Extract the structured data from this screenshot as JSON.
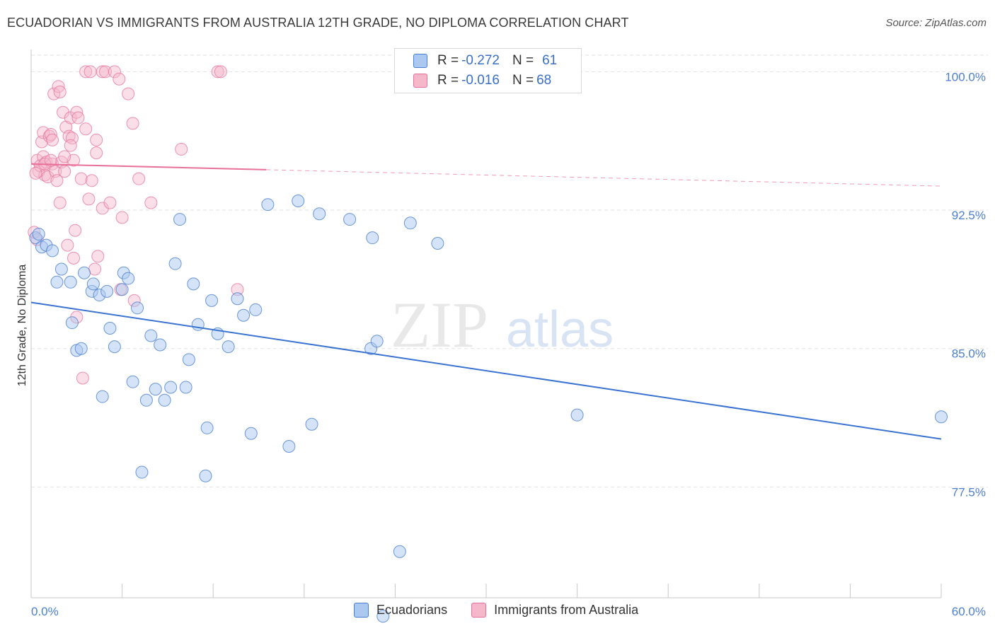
{
  "header": {
    "title": "ECUADORIAN VS IMMIGRANTS FROM AUSTRALIA 12TH GRADE, NO DIPLOMA CORRELATION CHART",
    "source": "Source: ZipAtlas.com"
  },
  "legend": {
    "rows": [
      {
        "r_label": "R = ",
        "r_value": "-0.272",
        "n_label": "N = ",
        "n_value": "61"
      },
      {
        "r_label": "R = ",
        "r_value": "-0.016",
        "n_label": "N = ",
        "n_value": "68"
      }
    ]
  },
  "bottom_legend": {
    "series1": "Ecuadorians",
    "series2": "Immigrants from Australia"
  },
  "watermark": {
    "part1": "ZIP",
    "part2": "atlas"
  },
  "colors": {
    "blue": "#4a7fd0",
    "blue_fill": "#aac8f0",
    "pink": "#e8709a",
    "pink_fill": "#f5b8cb",
    "axis_text": "#4a7fd0"
  },
  "chart_data": {
    "type": "scatter",
    "ylabel": "12th Grade, No Diploma",
    "xlim": [
      0,
      60
    ],
    "ylim": [
      71.5,
      101.2
    ],
    "x_tick_labels": [
      "0.0%",
      "60.0%"
    ],
    "y_ticks": [
      77.5,
      85.0,
      92.5,
      100.0
    ],
    "y_tick_labels": [
      "77.5%",
      "85.0%",
      "92.5%",
      "100.0%"
    ],
    "grid": true,
    "series": [
      {
        "name": "Ecuadorians",
        "color": "#4a7fd0",
        "trend": {
          "x0": 0,
          "y0": 87.5,
          "x1": 60,
          "y1": 80.1
        },
        "points": [
          [
            0.3,
            91.0
          ],
          [
            0.5,
            91.2
          ],
          [
            0.7,
            90.5
          ],
          [
            1.0,
            90.6
          ],
          [
            1.4,
            90.3
          ],
          [
            1.7,
            88.6
          ],
          [
            2.0,
            89.3
          ],
          [
            2.6,
            88.6
          ],
          [
            2.7,
            86.4
          ],
          [
            3.0,
            84.9
          ],
          [
            3.3,
            85.0
          ],
          [
            3.5,
            89.1
          ],
          [
            4.0,
            88.1
          ],
          [
            4.1,
            88.5
          ],
          [
            4.5,
            87.9
          ],
          [
            4.7,
            82.4
          ],
          [
            5.0,
            88.1
          ],
          [
            5.2,
            86.1
          ],
          [
            5.5,
            85.1
          ],
          [
            6.0,
            88.2
          ],
          [
            6.1,
            89.1
          ],
          [
            6.4,
            88.8
          ],
          [
            6.7,
            83.2
          ],
          [
            7.0,
            87.2
          ],
          [
            7.3,
            78.3
          ],
          [
            7.6,
            82.2
          ],
          [
            7.9,
            85.7
          ],
          [
            8.2,
            82.8
          ],
          [
            8.5,
            85.2
          ],
          [
            8.8,
            82.2
          ],
          [
            9.2,
            82.9
          ],
          [
            9.5,
            89.6
          ],
          [
            9.8,
            92.0
          ],
          [
            10.2,
            82.9
          ],
          [
            10.4,
            84.4
          ],
          [
            10.7,
            88.5
          ],
          [
            11.0,
            86.3
          ],
          [
            11.5,
            78.1
          ],
          [
            11.6,
            80.7
          ],
          [
            11.9,
            87.6
          ],
          [
            12.3,
            85.8
          ],
          [
            13.0,
            85.1
          ],
          [
            13.6,
            87.7
          ],
          [
            14.0,
            86.8
          ],
          [
            14.5,
            80.4
          ],
          [
            14.8,
            87.1
          ],
          [
            15.6,
            92.8
          ],
          [
            17.0,
            79.7
          ],
          [
            17.6,
            93.0
          ],
          [
            18.5,
            80.9
          ],
          [
            19.0,
            92.3
          ],
          [
            21.0,
            92.0
          ],
          [
            22.4,
            85.0
          ],
          [
            22.5,
            91.0
          ],
          [
            22.8,
            85.4
          ],
          [
            24.3,
            74.0
          ],
          [
            23.2,
            70.5
          ],
          [
            25.0,
            91.8
          ],
          [
            26.8,
            90.7
          ],
          [
            36.0,
            81.4
          ],
          [
            60.0,
            81.3
          ]
        ]
      },
      {
        "name": "Immigrants from Australia",
        "color": "#e8709a",
        "trend": {
          "x0": 0,
          "y0": 95.0,
          "x1": 60,
          "y1": 93.8,
          "solid_until": 15.5
        },
        "points": [
          [
            0.2,
            91.3
          ],
          [
            0.4,
            90.9
          ],
          [
            0.4,
            95.2
          ],
          [
            0.5,
            94.6
          ],
          [
            0.6,
            94.9
          ],
          [
            0.7,
            96.2
          ],
          [
            0.8,
            96.7
          ],
          [
            0.8,
            95.4
          ],
          [
            0.9,
            94.4
          ],
          [
            1.0,
            95.1
          ],
          [
            1.1,
            94.3
          ],
          [
            1.2,
            96.5
          ],
          [
            1.3,
            96.6
          ],
          [
            1.4,
            96.3
          ],
          [
            1.4,
            95.0
          ],
          [
            1.5,
            98.8
          ],
          [
            1.6,
            94.6
          ],
          [
            1.8,
            99.2
          ],
          [
            1.9,
            98.9
          ],
          [
            1.9,
            92.9
          ],
          [
            2.0,
            95.1
          ],
          [
            2.1,
            97.8
          ],
          [
            2.2,
            94.6
          ],
          [
            2.3,
            97.0
          ],
          [
            2.4,
            90.6
          ],
          [
            2.5,
            96.5
          ],
          [
            2.6,
            97.5
          ],
          [
            2.7,
            96.4
          ],
          [
            2.8,
            89.9
          ],
          [
            2.8,
            95.2
          ],
          [
            2.9,
            91.4
          ],
          [
            3.0,
            97.8
          ],
          [
            3.1,
            97.5
          ],
          [
            3.3,
            94.2
          ],
          [
            3.6,
            96.9
          ],
          [
            3.6,
            100.0
          ],
          [
            3.8,
            93.1
          ],
          [
            3.9,
            100.0
          ],
          [
            4.2,
            89.3
          ],
          [
            4.3,
            96.3
          ],
          [
            4.3,
            95.6
          ],
          [
            4.4,
            90.0
          ],
          [
            4.7,
            92.6
          ],
          [
            4.7,
            100.0
          ],
          [
            4.9,
            100.0
          ],
          [
            5.2,
            92.9
          ],
          [
            5.5,
            100.0
          ],
          [
            5.8,
            99.6
          ],
          [
            6.0,
            92.1
          ],
          [
            6.4,
            98.8
          ],
          [
            6.7,
            97.2
          ],
          [
            7.1,
            94.2
          ],
          [
            7.9,
            92.9
          ],
          [
            9.9,
            95.8
          ],
          [
            12.3,
            100.0
          ],
          [
            12.5,
            100.0
          ],
          [
            13.6,
            88.2
          ],
          [
            0.3,
            94.5
          ],
          [
            0.9,
            95.0
          ],
          [
            3.4,
            83.4
          ],
          [
            1.3,
            95.2
          ],
          [
            6.8,
            87.6
          ],
          [
            4.0,
            94.1
          ],
          [
            3.0,
            86.7
          ],
          [
            2.2,
            95.4
          ],
          [
            1.7,
            94.1
          ],
          [
            2.6,
            96.0
          ],
          [
            5.9,
            88.2
          ]
        ]
      }
    ]
  }
}
